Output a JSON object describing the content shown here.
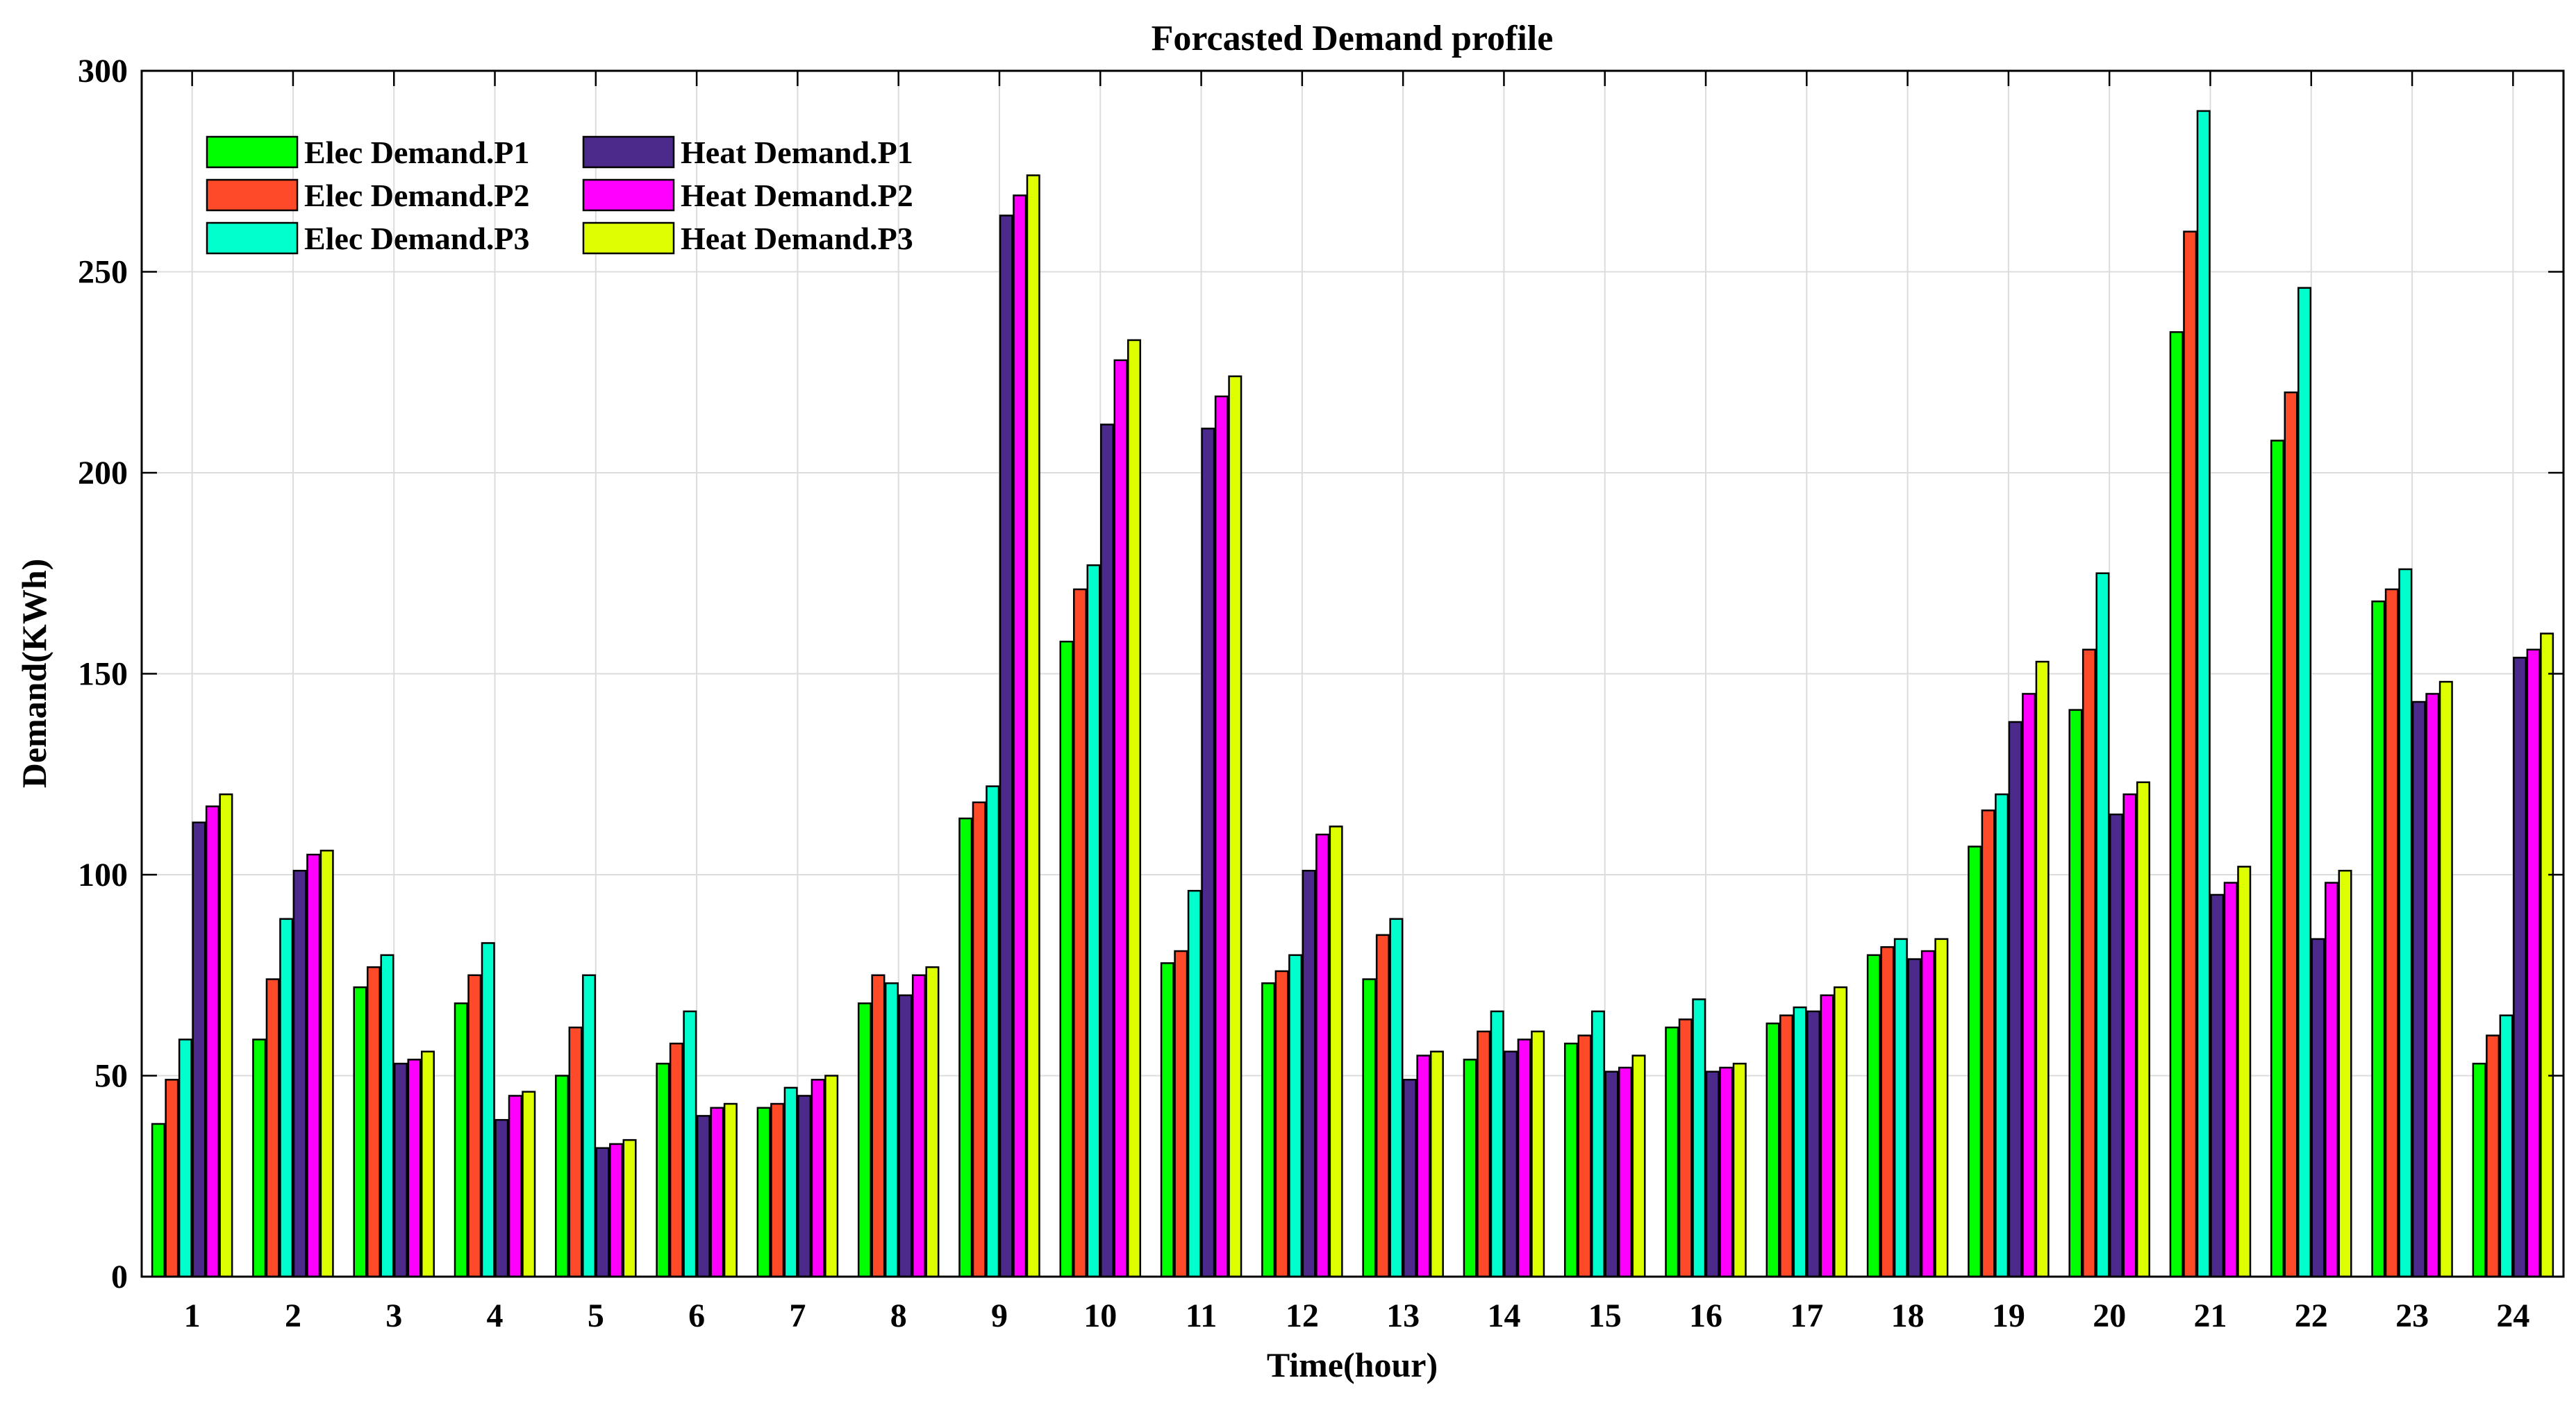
{
  "chart_data": {
    "type": "bar",
    "title": "Forcasted Demand profile",
    "xlabel": "Time(hour)",
    "ylabel": "Demand(KWh)",
    "ylim": [
      0,
      300
    ],
    "yticks": [
      0,
      50,
      100,
      150,
      200,
      250,
      300
    ],
    "grid": true,
    "legend_position": "top-left",
    "categories": [
      "1",
      "2",
      "3",
      "4",
      "5",
      "6",
      "7",
      "8",
      "9",
      "10",
      "11",
      "12",
      "13",
      "14",
      "15",
      "16",
      "17",
      "18",
      "19",
      "20",
      "21",
      "22",
      "23",
      "24"
    ],
    "series": [
      {
        "name": "Elec Demand.P1",
        "color": "#00ff00",
        "values": [
          38,
          59,
          72,
          68,
          50,
          53,
          42,
          68,
          114,
          158,
          78,
          73,
          74,
          54,
          58,
          62,
          63,
          80,
          107,
          141,
          235,
          208,
          168,
          53
        ]
      },
      {
        "name": "Elec Demand.P2",
        "color": "#ff4a2a",
        "values": [
          49,
          74,
          77,
          75,
          62,
          58,
          43,
          75,
          118,
          171,
          81,
          76,
          85,
          61,
          60,
          64,
          65,
          82,
          116,
          156,
          260,
          220,
          171,
          60
        ]
      },
      {
        "name": "Elec Demand.P3",
        "color": "#00ffcc",
        "values": [
          59,
          89,
          80,
          83,
          75,
          66,
          47,
          73,
          122,
          177,
          96,
          80,
          89,
          66,
          66,
          69,
          67,
          84,
          120,
          175,
          290,
          246,
          176,
          65
        ]
      },
      {
        "name": "Heat Demand.P1",
        "color": "#4b2a8c",
        "values": [
          113,
          101,
          53,
          39,
          32,
          40,
          45,
          70,
          264,
          212,
          211,
          101,
          49,
          56,
          51,
          51,
          66,
          79,
          138,
          115,
          95,
          84,
          143,
          154
        ]
      },
      {
        "name": "Heat Demand.P2",
        "color": "#ff00ff",
        "values": [
          117,
          105,
          54,
          45,
          33,
          42,
          49,
          75,
          269,
          228,
          219,
          110,
          55,
          59,
          52,
          52,
          70,
          81,
          145,
          120,
          98,
          98,
          145,
          156
        ]
      },
      {
        "name": "Heat Demand.P3",
        "color": "#ddff00",
        "values": [
          120,
          106,
          56,
          46,
          34,
          43,
          50,
          77,
          274,
          233,
          224,
          112,
          56,
          61,
          55,
          53,
          72,
          84,
          153,
          123,
          102,
          101,
          148,
          160
        ]
      }
    ]
  }
}
